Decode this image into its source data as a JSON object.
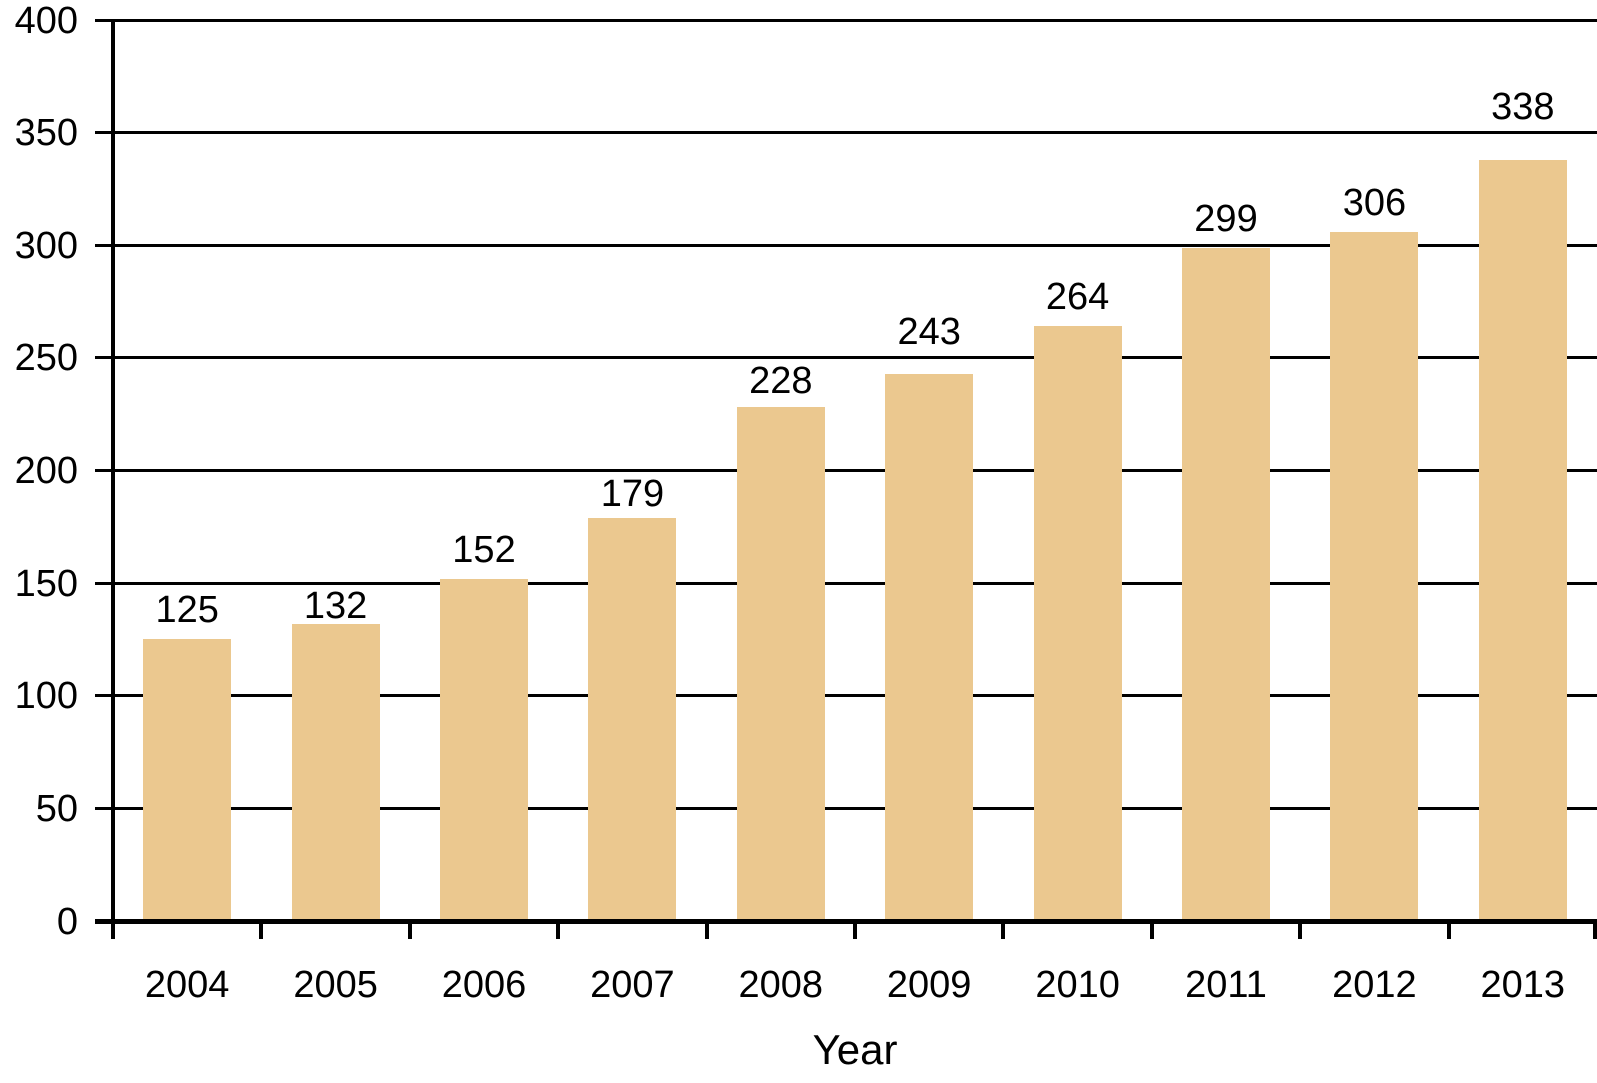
{
  "chart_data": {
    "type": "bar",
    "title": "",
    "xlabel": "Year",
    "ylabel": "",
    "categories": [
      "2004",
      "2005",
      "2006",
      "2007",
      "2008",
      "2009",
      "2010",
      "2011",
      "2012",
      "2013"
    ],
    "values": [
      125,
      132,
      152,
      179,
      228,
      243,
      264,
      299,
      306,
      338
    ],
    "bar_value_labels": [
      "125",
      "132",
      "152",
      "179",
      "228",
      "243",
      "264",
      "299",
      "306",
      "338"
    ],
    "ylim": [
      0,
      400
    ],
    "yticks": [
      0,
      50,
      100,
      150,
      200,
      250,
      300,
      350,
      400
    ],
    "grid": true,
    "legend": "none",
    "bar_color": "#EBC88F",
    "axis_color": "#000000",
    "text_color": "#000000",
    "background_color": "#FFFFFF"
  }
}
